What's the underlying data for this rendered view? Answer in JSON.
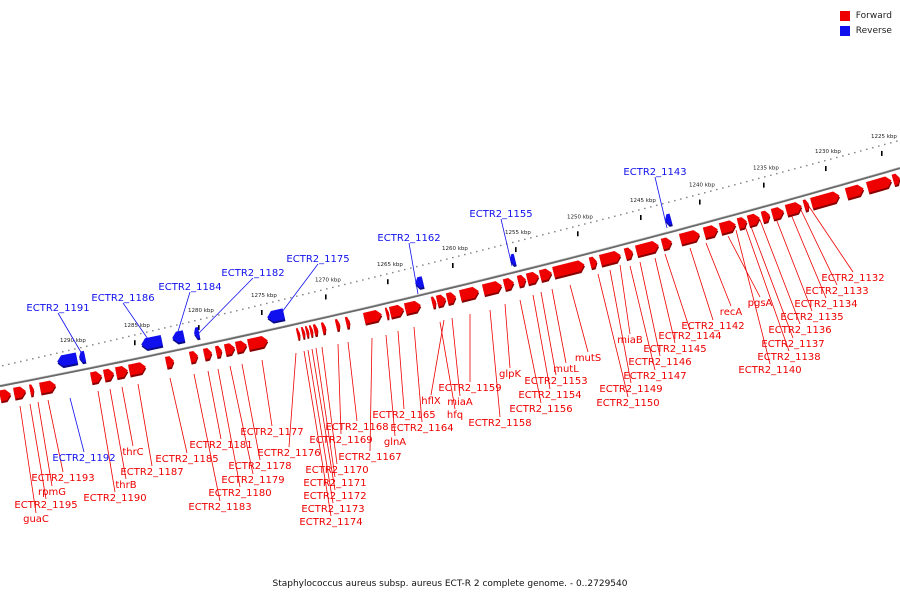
{
  "legend": {
    "forward_label": "Forward",
    "reverse_label": "Reverse"
  },
  "colors": {
    "forward": "#ee0000",
    "reverse": "#1010ee",
    "backbone": "#7a7a7a"
  },
  "caption": "Staphylococcus aureus subsp. aureus ECT-R 2 complete genome. - 0..2729540",
  "scale_ticks": [
    "1225 kbp",
    "1230 kbp",
    "1235 kbp",
    "1240 kbp",
    "1245 kbp",
    "1250 kbp",
    "1255 kbp",
    "1260 kbp",
    "1265 kbp",
    "1270 kbp",
    "1275 kbp",
    "1280 kbp",
    "1285 kbp",
    "1290 kbp"
  ],
  "reverse_labels": [
    "ECTR2_1143",
    "ECTR2_1155",
    "ECTR2_1162",
    "ECTR2_1175",
    "ECTR2_1182",
    "ECTR2_1184",
    "ECTR2_1186",
    "ECTR2_1191",
    "ECTR2_1192"
  ],
  "forward_labels": [
    "ECTR2_1132",
    "ECTR2_1133",
    "ECTR2_1134",
    "ECTR2_1135",
    "ECTR2_1136",
    "ECTR2_1137",
    "ECTR2_1138",
    "ECTR2_1140",
    "pgsA",
    "recA",
    "ECTR2_1142",
    "ECTR2_1144",
    "ECTR2_1145",
    "ECTR2_1146",
    "ECTR2_1147",
    "miaB",
    "ECTR2_1149",
    "ECTR2_1150",
    "mutS",
    "mutL",
    "ECTR2_1153",
    "ECTR2_1154",
    "ECTR2_1156",
    "glpK",
    "ECTR2_1158",
    "ECTR2_1159",
    "hflX",
    "miaA",
    "hfq",
    "ECTR2_1164",
    "ECTR2_1165",
    "glnA",
    "ECTR2_1167",
    "ECTR2_1168",
    "ECTR2_1169",
    "ECTR2_1170",
    "ECTR2_1171",
    "ECTR2_1172",
    "ECTR2_1173",
    "ECTR2_1174",
    "ECTR2_1176",
    "ECTR2_1177",
    "ECTR2_1178",
    "ECTR2_1179",
    "ECTR2_1180",
    "ECTR2_1181",
    "ECTR2_1183",
    "ECTR2_1185",
    "ECTR2_1187",
    "thrC",
    "thrB",
    "ECTR2_1190",
    "ECTR2_1193",
    "rpmG",
    "ECTR2_1195",
    "guaC"
  ]
}
